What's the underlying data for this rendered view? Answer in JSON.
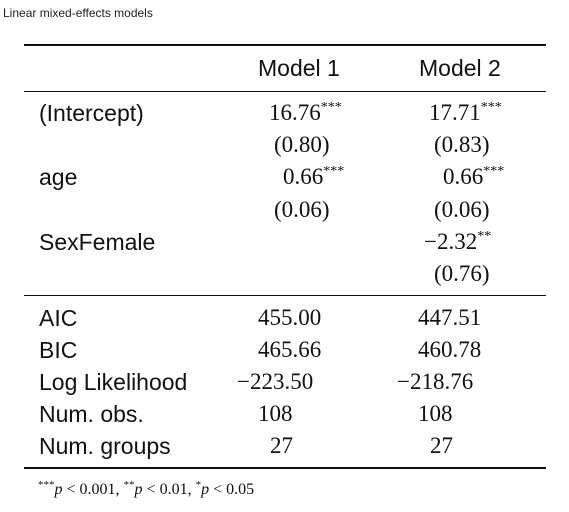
{
  "caption": "Linear mixed-effects models",
  "columns": [
    "Model 1",
    "Model 2"
  ],
  "coef_rows": [
    {
      "term": "(Intercept)",
      "m1": "16.76",
      "m1_sig": "***",
      "m1_se": "(0.80)",
      "m2": "17.71",
      "m2_sig": "***",
      "m2_se": "(0.83)"
    },
    {
      "term": "age",
      "m1": "0.66",
      "m1_sig": "***",
      "m1_se": "(0.06)",
      "m2": "0.66",
      "m2_sig": "***",
      "m2_se": "(0.06)"
    },
    {
      "term": "SexFemale",
      "m1": "",
      "m1_sig": "",
      "m1_se": "",
      "m2": "−2.32",
      "m2_sig": "**",
      "m2_se": "(0.76)"
    }
  ],
  "gof_rows": [
    {
      "label": "AIC",
      "m1": "455.00",
      "m2": "447.51"
    },
    {
      "label": "BIC",
      "m1": "465.66",
      "m2": "460.78"
    },
    {
      "label": "Log Likelihood",
      "m1": "−223.50",
      "m2": "−218.76"
    },
    {
      "label": "Num. obs.",
      "m1": "108",
      "m2": "108"
    },
    {
      "label": "Num. groups",
      "m1": "27",
      "m2": "27"
    }
  ],
  "footnote": [
    {
      "stars": "***",
      "p": "p",
      "op": " < ",
      "val": "0.001",
      "sep": ", "
    },
    {
      "stars": "**",
      "p": "p",
      "op": " < ",
      "val": "0.01",
      "sep": ", "
    },
    {
      "stars": "*",
      "p": "p",
      "op": " < ",
      "val": "0.05",
      "sep": ""
    }
  ]
}
